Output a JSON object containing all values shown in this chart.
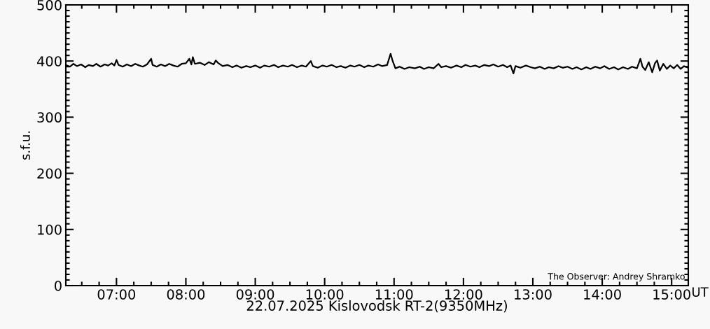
{
  "chart_data": {
    "type": "line",
    "xlabel": "22.07.2025 Kislovodsk RT-2(9350MHz)",
    "ylabel": "s.f.u.",
    "annotations": [
      "The Observer: Andrey Shramko",
      "UT"
    ],
    "xlim": [
      6.27,
      15.24
    ],
    "xticks": [
      {
        "value": 7,
        "label": "07:00"
      },
      {
        "value": 8,
        "label": "08:00"
      },
      {
        "value": 9,
        "label": "09:00"
      },
      {
        "value": 10,
        "label": "10:00"
      },
      {
        "value": 11,
        "label": "11:00"
      },
      {
        "value": 12,
        "label": "12:00"
      },
      {
        "value": 13,
        "label": "13:00"
      },
      {
        "value": 14,
        "label": "14:00"
      },
      {
        "value": 15,
        "label": "15:00"
      }
    ],
    "ylim": [
      0,
      500
    ],
    "yticks": [
      0,
      100,
      200,
      300,
      400,
      500
    ],
    "grid": false,
    "legend": false,
    "series": [
      {
        "color": "#000000",
        "x": [
          6.27,
          6.33,
          6.38,
          6.43,
          6.49,
          6.55,
          6.6,
          6.66,
          6.71,
          6.77,
          6.83,
          6.88,
          6.93,
          6.97,
          7.0,
          7.03,
          7.09,
          7.15,
          7.21,
          7.27,
          7.33,
          7.38,
          7.44,
          7.5,
          7.52,
          7.58,
          7.64,
          7.7,
          7.76,
          7.82,
          7.88,
          7.94,
          8.0,
          8.05,
          8.08,
          8.1,
          8.13,
          8.2,
          8.27,
          8.33,
          8.4,
          8.43,
          8.47,
          8.53,
          8.6,
          8.67,
          8.73,
          8.8,
          8.87,
          8.93,
          9.0,
          9.07,
          9.13,
          9.2,
          9.27,
          9.33,
          9.4,
          9.47,
          9.53,
          9.6,
          9.67,
          9.73,
          9.8,
          9.83,
          9.9,
          9.97,
          10.03,
          10.1,
          10.17,
          10.23,
          10.3,
          10.37,
          10.43,
          10.5,
          10.57,
          10.63,
          10.7,
          10.77,
          10.83,
          10.9,
          10.95,
          10.98,
          11.02,
          11.08,
          11.15,
          11.22,
          11.3,
          11.37,
          11.43,
          11.5,
          11.57,
          11.64,
          11.68,
          11.75,
          11.82,
          11.9,
          11.97,
          12.03,
          12.1,
          12.17,
          12.23,
          12.3,
          12.37,
          12.43,
          12.5,
          12.57,
          12.63,
          12.68,
          12.72,
          12.75,
          12.82,
          12.9,
          12.97,
          13.03,
          13.1,
          13.17,
          13.23,
          13.3,
          13.37,
          13.43,
          13.5,
          13.57,
          13.63,
          13.7,
          13.77,
          13.83,
          13.9,
          13.97,
          14.03,
          14.1,
          14.17,
          14.23,
          14.3,
          14.37,
          14.43,
          14.5,
          14.55,
          14.58,
          14.62,
          14.67,
          14.72,
          14.76,
          14.79,
          14.83,
          14.88,
          14.93,
          14.98,
          15.03,
          15.08,
          15.13,
          15.18,
          15.24
        ],
        "values": [
          393,
          390,
          395,
          391,
          394,
          389,
          393,
          391,
          395,
          390,
          394,
          392,
          396,
          392,
          402,
          393,
          390,
          394,
          391,
          395,
          392,
          390,
          394,
          404,
          393,
          390,
          394,
          391,
          395,
          392,
          390,
          395,
          396,
          404,
          394,
          407,
          395,
          397,
          393,
          398,
          394,
          401,
          396,
          391,
          393,
          389,
          392,
          388,
          391,
          389,
          392,
          388,
          392,
          390,
          393,
          389,
          392,
          390,
          393,
          389,
          392,
          390,
          400,
          391,
          388,
          392,
          390,
          393,
          389,
          391,
          388,
          392,
          390,
          393,
          389,
          392,
          390,
          394,
          391,
          393,
          413,
          400,
          387,
          390,
          386,
          389,
          387,
          390,
          386,
          389,
          387,
          395,
          389,
          391,
          388,
          392,
          389,
          393,
          390,
          392,
          389,
          393,
          391,
          394,
          390,
          393,
          389,
          392,
          378,
          391,
          388,
          392,
          389,
          387,
          390,
          386,
          389,
          387,
          391,
          388,
          390,
          386,
          389,
          385,
          389,
          386,
          390,
          387,
          391,
          386,
          389,
          385,
          389,
          386,
          390,
          387,
          404,
          390,
          384,
          398,
          380,
          396,
          401,
          383,
          395,
          386,
          392,
          387,
          393,
          386,
          391,
          388
        ]
      }
    ]
  }
}
